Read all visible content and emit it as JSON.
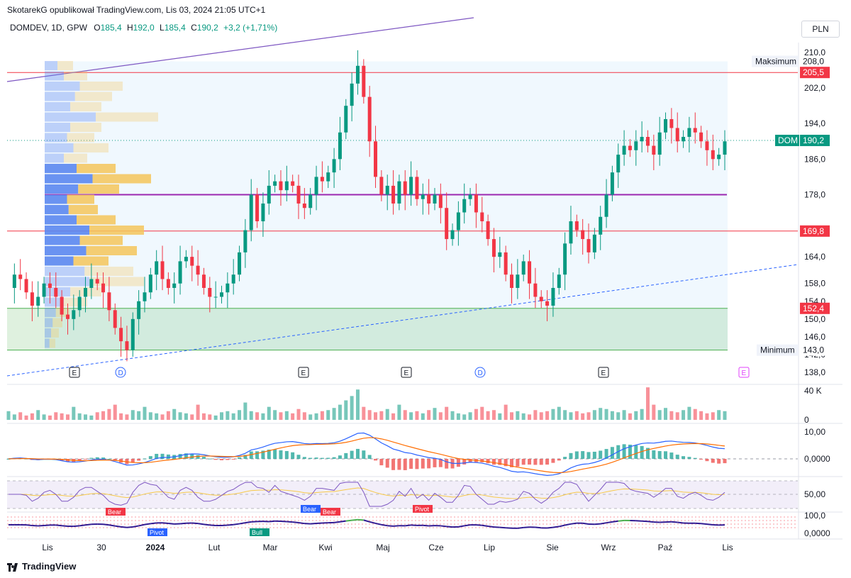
{
  "header": {
    "published": "SkotarekG opublikował TradingView.com, Lis 03, 2024 21:05 UTC+1",
    "symbol": "DOMDEV, 1D, GPW",
    "o_label": "O",
    "o": "185,4",
    "h_label": "H",
    "h": "192,0",
    "l_label": "L",
    "l": "185,4",
    "c_label": "C",
    "c": "190,2",
    "change": "+3,2 (+1,71%)"
  },
  "currency": "PLN",
  "footer": "TradingView",
  "colors": {
    "up": "#089981",
    "down": "#f23645",
    "ma_fast": "#2962ff",
    "ma_slow": "#ff6d00",
    "rsi": "#7e57c2",
    "rsi_ma": "#f7c948",
    "pvp_up": "#5b87f0",
    "pvp_down": "#f5c55a",
    "support_zone": "#4caf50",
    "range_box": "#bbdefb"
  },
  "chart_data": [
    {
      "type": "candlestick",
      "title": "DOMDEV, 1D, GPW",
      "xlabel": "",
      "ylabel": "",
      "ylim": [
        136,
        212
      ],
      "ticks_y": [
        "210,0",
        "202,0",
        "194,0",
        "186,0",
        "178,0",
        "164,0",
        "158,0",
        "154,0",
        "150,0",
        "146,0",
        "142,0",
        "138,0"
      ],
      "ticks_x": [
        "Lis",
        "30",
        "2024",
        "Lut",
        "Mar",
        "Kwi",
        "Maj",
        "Cze",
        "Lip",
        "Sie",
        "Wrz",
        "Paź",
        "Lis"
      ],
      "price_levels": [
        {
          "label": "Maksimum",
          "value": 208.0,
          "text": "208,0"
        },
        {
          "label": "",
          "value": 205.5,
          "text": "205,5"
        },
        {
          "label": "DOM",
          "value": 190.2,
          "text": "190,2"
        },
        {
          "label": "",
          "value": 169.8,
          "text": "169,8"
        },
        {
          "label": "",
          "value": 152.4,
          "text": "152,4"
        },
        {
          "label": "Minimum",
          "value": 143.0,
          "text": "143,0"
        }
      ],
      "poc_level": 178.0,
      "events": [
        "E",
        "D",
        "E",
        "E",
        "D",
        "E",
        "E"
      ],
      "ohlc_path": [
        157,
        160,
        159,
        156,
        153,
        155,
        158,
        157,
        155,
        151,
        150,
        152,
        155,
        157,
        159,
        158,
        156,
        152,
        148,
        145,
        143,
        150,
        154,
        156,
        160,
        163,
        159,
        157,
        158,
        163,
        164,
        162,
        160,
        157,
        155,
        155,
        156,
        158,
        160,
        165,
        170,
        178,
        172,
        176,
        180,
        181,
        179,
        181,
        180,
        176,
        175,
        178,
        182,
        181,
        183,
        186,
        192,
        198,
        203,
        207,
        200,
        190,
        182,
        178,
        180,
        176,
        181,
        178,
        182,
        177,
        178,
        176,
        178,
        175,
        168,
        170,
        174,
        177,
        178,
        174,
        172,
        168,
        164,
        165,
        160,
        157,
        160,
        163,
        158,
        155,
        154,
        153,
        157,
        160,
        167,
        172,
        170,
        168,
        165,
        169,
        173,
        178,
        183,
        187,
        189,
        188,
        190,
        191,
        189,
        187,
        192,
        195,
        193,
        190,
        191,
        193,
        192,
        190,
        188,
        186,
        187,
        190
      ]
    },
    {
      "type": "bar",
      "title": "Volume",
      "ylim": [
        0,
        40000
      ],
      "ticks_y": [
        "40 K",
        "0"
      ],
      "values": [
        8,
        5,
        7,
        4,
        6,
        9,
        5,
        4,
        7,
        6,
        5,
        12,
        6,
        5,
        4,
        7,
        8,
        10,
        14,
        6,
        5,
        9,
        8,
        12,
        7,
        6,
        5,
        8,
        10,
        7,
        6,
        5,
        14,
        6,
        5,
        4,
        7,
        8,
        6,
        9,
        16,
        8,
        7,
        6,
        12,
        9,
        7,
        8,
        6,
        10,
        7,
        5,
        6,
        8,
        9,
        11,
        14,
        18,
        22,
        28,
        12,
        9,
        7,
        8,
        10,
        6,
        14,
        9,
        7,
        8,
        6,
        9,
        11,
        7,
        12,
        8,
        6,
        5,
        7,
        10,
        12,
        8,
        9,
        6,
        14,
        7,
        8,
        6,
        5,
        9,
        7,
        8,
        10,
        12,
        9,
        7,
        8,
        6,
        7,
        9,
        11,
        10,
        8,
        7,
        9,
        6,
        8,
        10,
        30,
        14,
        9,
        11,
        8,
        7,
        9,
        12,
        10,
        8,
        6,
        7,
        9,
        8
      ]
    },
    {
      "type": "line",
      "title": "MACD",
      "ticks_y": [
        "10,00",
        "0,0000"
      ],
      "series": []
    },
    {
      "type": "line",
      "title": "RSI",
      "ticks_y": [
        "50,00"
      ],
      "series": []
    },
    {
      "type": "line",
      "title": "Pivot",
      "ticks_y": [
        "100,0",
        "0,0000"
      ],
      "annotations": [
        "Bear",
        "Pivot",
        "Bull",
        "Bear",
        "Bear",
        "Pivot"
      ],
      "series": []
    }
  ]
}
